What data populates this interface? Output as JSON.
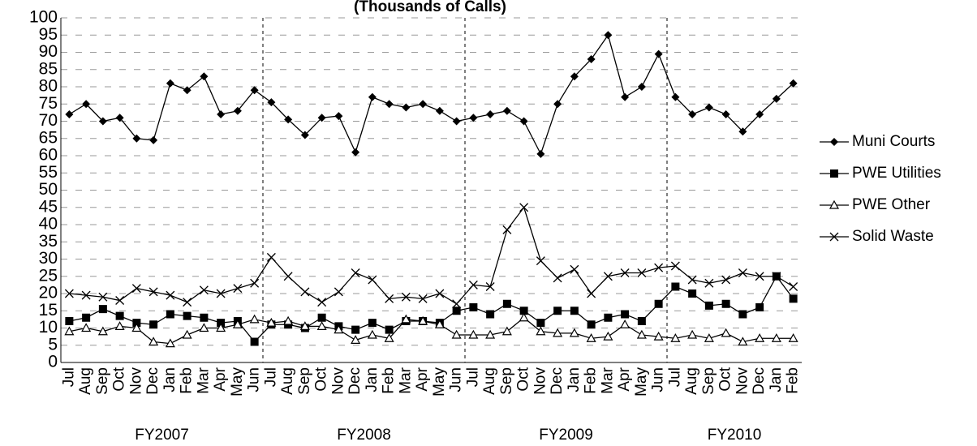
{
  "chart_data": {
    "type": "line",
    "title": "(Thousands of Calls)",
    "categories": [
      "Jul",
      "Aug",
      "Sep",
      "Oct",
      "Nov",
      "Dec",
      "Jan",
      "Feb",
      "Mar",
      "Apr",
      "May",
      "Jun",
      "Jul",
      "Aug",
      "Sep",
      "Oct",
      "Nov",
      "Dec",
      "Jan",
      "Feb",
      "Mar",
      "Apr",
      "May",
      "Jun",
      "Jul",
      "Aug",
      "Sep",
      "Oct",
      "Nov",
      "Dec",
      "Jan",
      "Feb",
      "Mar",
      "Apr",
      "May",
      "Jun",
      "Jul",
      "Aug",
      "Sep",
      "Oct",
      "Nov",
      "Dec",
      "Jan",
      "Feb"
    ],
    "groups": [
      "FY2007",
      "FY2008",
      "FY2009",
      "FY2010"
    ],
    "ylim": [
      0,
      100
    ],
    "yticks": [
      0,
      5,
      10,
      15,
      20,
      25,
      30,
      35,
      40,
      45,
      50,
      55,
      60,
      65,
      70,
      75,
      80,
      85,
      90,
      95,
      100
    ],
    "grid": true,
    "series": [
      {
        "name": "Muni Courts",
        "color": "#000000",
        "marker": "diamond",
        "values": [
          72,
          75,
          70,
          71,
          65,
          64.5,
          81,
          79,
          83,
          72,
          73,
          79,
          75.5,
          70.5,
          66,
          71,
          71.5,
          61,
          77,
          75,
          74,
          75,
          73,
          70,
          71,
          72,
          73,
          70,
          60.5,
          75,
          83,
          88,
          95,
          77,
          80,
          89.5,
          77,
          72,
          74,
          72,
          67,
          72,
          76.5,
          81
        ]
      },
      {
        "name": "PWE  Utilities",
        "color": "#000000",
        "marker": "square",
        "values": [
          12,
          13,
          15.5,
          13.5,
          11.5,
          11,
          14,
          13.5,
          13,
          11.5,
          12,
          6,
          11,
          11,
          10,
          13,
          10.5,
          9.5,
          11.5,
          9.5,
          12,
          12,
          11.5,
          15,
          16,
          14,
          17,
          15,
          11.5,
          15,
          15,
          11,
          13,
          14,
          12,
          17,
          22,
          20,
          16.5,
          17,
          14,
          16,
          25,
          18.5
        ]
      },
      {
        "name": "PWE Other",
        "color": "#000000",
        "marker": "triangle",
        "values": [
          9,
          10,
          9,
          10.5,
          10,
          6,
          5.5,
          8,
          10,
          10,
          11,
          12.5,
          11.5,
          12,
          10.5,
          10.5,
          9.5,
          6.5,
          8,
          7,
          12.5,
          12,
          11,
          8,
          8,
          8,
          9,
          13,
          9,
          8.5,
          8.5,
          7,
          7.5,
          11,
          8,
          7.5,
          7,
          8,
          7,
          8.5,
          6,
          7,
          7,
          7
        ]
      },
      {
        "name": "Solid Waste",
        "color": "#000000",
        "marker": "x",
        "values": [
          20,
          19.5,
          19,
          18,
          21.5,
          20.5,
          19.5,
          17.5,
          21,
          20,
          21.5,
          23,
          30.5,
          25,
          20.5,
          17.5,
          20.5,
          26,
          24,
          18.5,
          19,
          18.5,
          20,
          17,
          22.5,
          22,
          38.5,
          45,
          29.5,
          24.5,
          27,
          20,
          25,
          26,
          26,
          27.5,
          28,
          24,
          23,
          24,
          26,
          25,
          25,
          22
        ]
      }
    ]
  }
}
